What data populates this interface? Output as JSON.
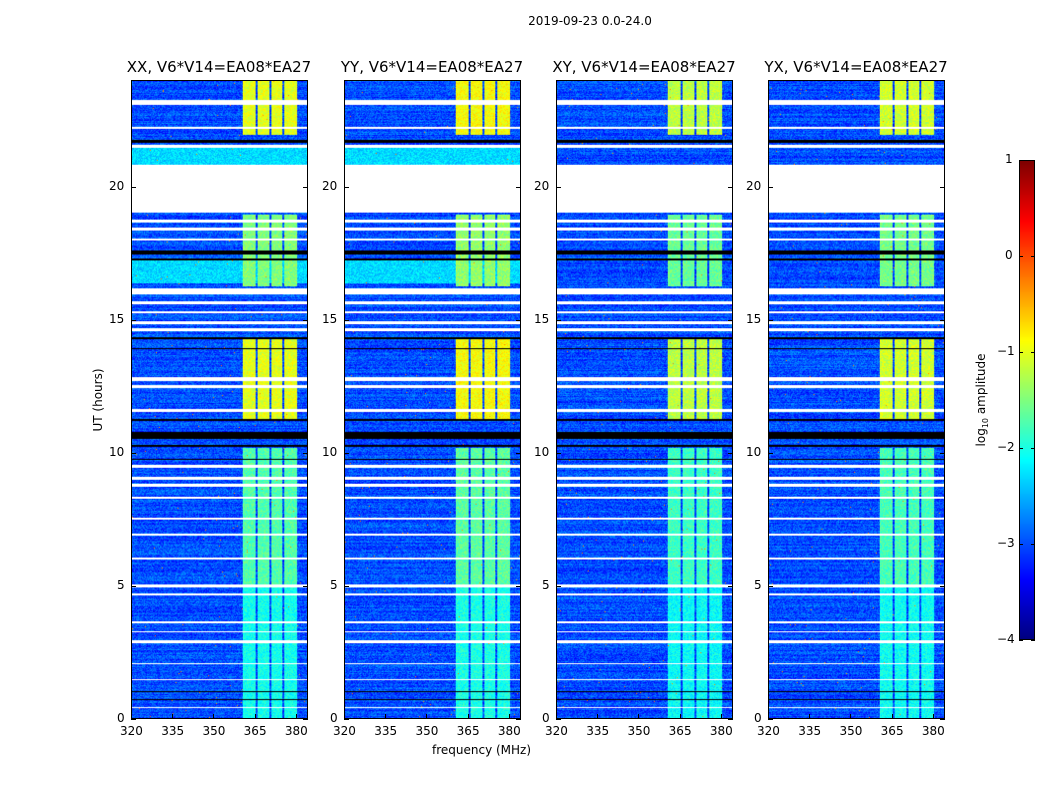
{
  "chart_data": {
    "type": "heatmap",
    "title": "2019-09-23 0.0-24.0",
    "xlabel": "frequency (MHz)",
    "ylabel": "UT (hours)",
    "xlim": [
      320,
      384.4
    ],
    "ylim": [
      0,
      24
    ],
    "xticks": [
      "320",
      "335",
      "350",
      "365",
      "380"
    ],
    "xtick_values": [
      320,
      335,
      350,
      365,
      380
    ],
    "yticks": [
      "0",
      "5",
      "10",
      "15",
      "20"
    ],
    "ytick_values": [
      0,
      5,
      10,
      15,
      20
    ],
    "panels": [
      {
        "title": "XX, V6*V14=EA08*EA27",
        "band_level": [
          -1.0,
          -1.6
        ]
      },
      {
        "title": "YY, V6*V14=EA08*EA27",
        "band_level": [
          -0.9,
          -1.3
        ]
      },
      {
        "title": "XY, V6*V14=EA08*EA27",
        "band_level": [
          -1.2,
          -1.8
        ]
      },
      {
        "title": "YX, V6*V14=EA08*EA27",
        "band_level": [
          -1.1,
          -1.5
        ]
      }
    ],
    "background_level": -3.0,
    "bright_subbands_mhz": [
      [
        360.7,
        365.3
      ],
      [
        366.0,
        370.3
      ],
      [
        371.0,
        375.3
      ],
      [
        376.0,
        380.4
      ]
    ],
    "flagged_hours_white": [
      [
        19.05,
        20.85
      ],
      [
        23.1,
        23.3
      ],
      [
        22.2,
        22.3
      ],
      [
        21.5,
        21.6
      ],
      [
        18.7,
        18.8
      ],
      [
        18.4,
        18.5
      ],
      [
        18.0,
        18.1
      ],
      [
        16.0,
        16.2
      ],
      [
        15.6,
        15.7
      ],
      [
        15.25,
        15.35
      ],
      [
        14.85,
        14.95
      ],
      [
        14.6,
        14.7
      ],
      [
        12.7,
        12.85
      ],
      [
        12.45,
        12.55
      ],
      [
        11.55,
        11.65
      ],
      [
        9.45,
        9.55
      ],
      [
        9.0,
        9.1
      ],
      [
        8.75,
        8.85
      ],
      [
        8.3,
        8.35
      ],
      [
        7.5,
        7.55
      ],
      [
        6.9,
        6.95
      ],
      [
        6.0,
        6.05
      ],
      [
        4.95,
        5.05
      ],
      [
        4.65,
        4.7
      ],
      [
        3.6,
        3.65
      ],
      [
        3.25,
        3.3
      ],
      [
        2.85,
        2.95
      ],
      [
        2.05,
        2.1
      ],
      [
        1.45,
        1.5
      ],
      [
        0.4,
        0.45
      ]
    ],
    "flagged_hours_black": [
      [
        21.7,
        21.8
      ],
      [
        17.5,
        17.65
      ],
      [
        17.25,
        17.35
      ],
      [
        14.3,
        14.38
      ],
      [
        13.9,
        13.97
      ],
      [
        11.2,
        11.28
      ],
      [
        10.55,
        10.8
      ],
      [
        10.25,
        10.3
      ],
      [
        9.75,
        9.8
      ],
      [
        1.0,
        1.05
      ],
      [
        0.7,
        0.75
      ]
    ],
    "enhanced_hours": [
      [
        22.0,
        24.0,
        1.0
      ],
      [
        11.3,
        14.3,
        1.0
      ],
      [
        16.3,
        19.0,
        0.7
      ],
      [
        5.0,
        10.2,
        0.55
      ],
      [
        0,
        5,
        0.35
      ]
    ],
    "colorbar": {
      "label": "log10 amplitude",
      "label_main": "log",
      "label_sub": "10",
      "label_tail": " amplitude",
      "range": [
        -4,
        1
      ],
      "ticks": [
        "1",
        "0",
        "−1",
        "−2",
        "−3",
        "−4"
      ],
      "tick_values": [
        1,
        0,
        -1,
        -2,
        -3,
        -4
      ],
      "colormap": "jet"
    }
  }
}
